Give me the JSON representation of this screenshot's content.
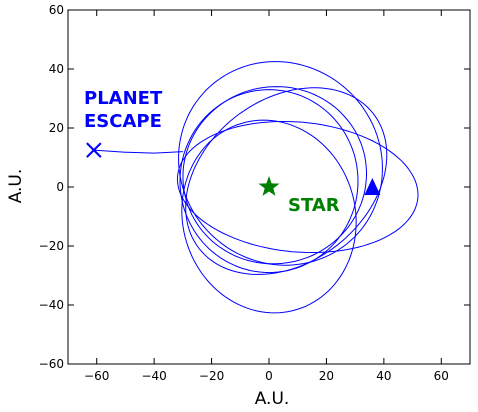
{
  "chart_data": {
    "type": "scatter",
    "title": "",
    "xlabel": "A.U.",
    "ylabel": "A.U.",
    "xlim": [
      -70,
      70
    ],
    "ylim": [
      -60,
      60
    ],
    "xticks": [
      -60,
      -40,
      -20,
      0,
      20,
      40,
      60
    ],
    "yticks": [
      -60,
      -40,
      -20,
      0,
      20,
      40,
      60
    ],
    "grid": false,
    "colors": {
      "orbit": "#0000ff",
      "star": "#008000",
      "escape_label": "#0000ff",
      "star_label": "#008000"
    },
    "star": {
      "x": 0,
      "y": 0,
      "marker": "star",
      "label": "STAR"
    },
    "planet_start": {
      "x": 36,
      "y": 0,
      "marker": "triangle-up"
    },
    "planet_escape": {
      "x": -61,
      "y": 12.5,
      "marker": "x",
      "label_line1": "PLANET",
      "label_line2": "ESCAPE"
    },
    "orbit_path": {
      "description_loops": [
        {
          "cx": 2,
          "cy": 4,
          "a": 32,
          "b": 30,
          "rot": 8,
          "t0": 0,
          "t1": 360
        },
        {
          "cx": 6,
          "cy": 2,
          "a": 38,
          "b": 28,
          "rot": 35,
          "t0": 0,
          "t1": 360
        },
        {
          "cx": 10,
          "cy": 0,
          "a": 42,
          "b": 22,
          "rot": -5,
          "t0": 0,
          "t1": 360
        },
        {
          "cx": 0,
          "cy": -10,
          "a": 30,
          "b": 33,
          "rot": 20,
          "t0": 0,
          "t1": 360
        },
        {
          "cx": 4,
          "cy": 8,
          "a": 36,
          "b": 34,
          "rot": -30,
          "t0": 0,
          "t1": 360
        },
        {
          "cx": 0,
          "cy": 2,
          "a": 31,
          "b": 31,
          "rot": 0,
          "t0": 0,
          "t1": 360
        }
      ],
      "escape_tail": [
        [
          -30,
          12
        ],
        [
          -40,
          11.5
        ],
        [
          -50,
          11.8
        ],
        [
          -61,
          12.5
        ]
      ]
    }
  }
}
